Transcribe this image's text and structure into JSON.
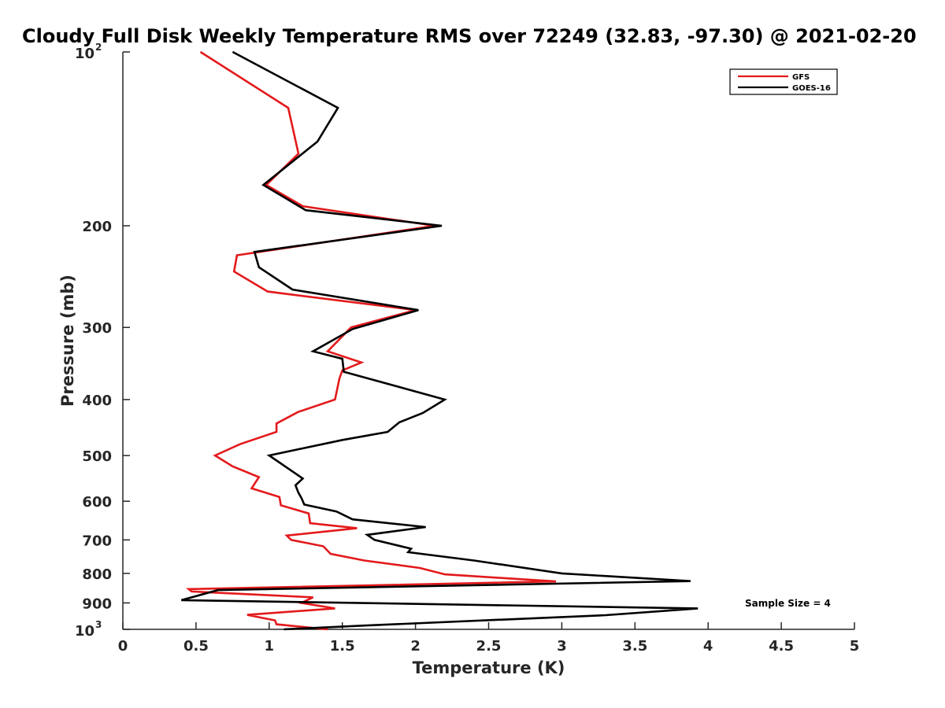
{
  "chart_data": {
    "type": "line",
    "title": "Cloudy Full Disk Weekly Temperature RMS over 72249 (32.83, -97.30) @ 2021-02-20",
    "xlabel": "Temperature (K)",
    "ylabel": "Pressure (mb)",
    "xlim": [
      0,
      5
    ],
    "ylim": [
      100,
      1000
    ],
    "y_scale": "log",
    "y_reversed": true,
    "x_ticks": [
      "0",
      "0.5",
      "1",
      "1.5",
      "2",
      "2.5",
      "3",
      "3.5",
      "4",
      "4.5",
      "5"
    ],
    "y_ticks": [
      {
        "value": 100,
        "base": "10",
        "exp": "2"
      },
      {
        "value": 200,
        "label": "200"
      },
      {
        "value": 300,
        "label": "300"
      },
      {
        "value": 400,
        "label": "400"
      },
      {
        "value": 500,
        "label": "500"
      },
      {
        "value": 600,
        "label": "600"
      },
      {
        "value": 700,
        "label": "700"
      },
      {
        "value": 800,
        "label": "800"
      },
      {
        "value": 900,
        "label": "900"
      },
      {
        "value": 1000,
        "base": "10",
        "exp": "3"
      }
    ],
    "legend_position": "top-right",
    "grid": false,
    "series": [
      {
        "name": "GFS",
        "color": "#e31a1c",
        "points": [
          [
            0.53,
            100
          ],
          [
            1.13,
            125
          ],
          [
            1.2,
            150
          ],
          [
            0.98,
            170
          ],
          [
            1.23,
            185
          ],
          [
            2.13,
            200
          ],
          [
            0.78,
            225
          ],
          [
            0.76,
            240
          ],
          [
            0.99,
            260
          ],
          [
            2.0,
            280
          ],
          [
            1.56,
            300
          ],
          [
            1.4,
            330
          ],
          [
            1.63,
            345
          ],
          [
            1.5,
            356
          ],
          [
            1.48,
            368
          ],
          [
            1.45,
            400
          ],
          [
            1.2,
            420
          ],
          [
            1.05,
            440
          ],
          [
            1.05,
            455
          ],
          [
            0.8,
            478
          ],
          [
            0.63,
            500
          ],
          [
            0.75,
            522
          ],
          [
            0.93,
            545
          ],
          [
            0.88,
            570
          ],
          [
            1.07,
            590
          ],
          [
            1.08,
            610
          ],
          [
            1.27,
            630
          ],
          [
            1.28,
            655
          ],
          [
            1.6,
            668
          ],
          [
            1.12,
            688
          ],
          [
            1.15,
            700
          ],
          [
            1.37,
            718
          ],
          [
            1.42,
            740
          ],
          [
            1.65,
            760
          ],
          [
            2.03,
            783
          ],
          [
            2.2,
            803
          ],
          [
            2.96,
            826
          ],
          [
            0.45,
            852
          ],
          [
            0.47,
            860
          ],
          [
            1.3,
            880
          ],
          [
            1.22,
            900
          ],
          [
            1.45,
            920
          ],
          [
            0.85,
            944
          ],
          [
            1.04,
            965
          ],
          [
            1.05,
            980
          ],
          [
            1.4,
            1000
          ]
        ]
      },
      {
        "name": "GOES-16",
        "color": "#000000",
        "points": [
          [
            0.75,
            100
          ],
          [
            1.47,
            125
          ],
          [
            1.33,
            143
          ],
          [
            0.96,
            170
          ],
          [
            1.25,
            188
          ],
          [
            2.18,
            200
          ],
          [
            0.9,
            222
          ],
          [
            0.93,
            236
          ],
          [
            1.16,
            258
          ],
          [
            2.02,
            280
          ],
          [
            1.57,
            302
          ],
          [
            1.3,
            330
          ],
          [
            1.5,
            340
          ],
          [
            1.51,
            358
          ],
          [
            2.2,
            400
          ],
          [
            2.05,
            422
          ],
          [
            1.89,
            438
          ],
          [
            1.81,
            455
          ],
          [
            1.5,
            470
          ],
          [
            1.0,
            500
          ],
          [
            1.23,
            548
          ],
          [
            1.18,
            563
          ],
          [
            1.2,
            580
          ],
          [
            1.22,
            592
          ],
          [
            1.24,
            608
          ],
          [
            1.46,
            625
          ],
          [
            1.57,
            645
          ],
          [
            2.07,
            665
          ],
          [
            1.67,
            686
          ],
          [
            1.72,
            700
          ],
          [
            1.97,
            725
          ],
          [
            1.95,
            735
          ],
          [
            2.4,
            760
          ],
          [
            3.0,
            800
          ],
          [
            3.88,
            825
          ],
          [
            0.65,
            855
          ],
          [
            0.4,
            890
          ],
          [
            3.93,
            920
          ],
          [
            3.3,
            945
          ],
          [
            1.65,
            985
          ],
          [
            1.1,
            1000
          ]
        ]
      }
    ],
    "annotation": "Sample Size = 4"
  }
}
